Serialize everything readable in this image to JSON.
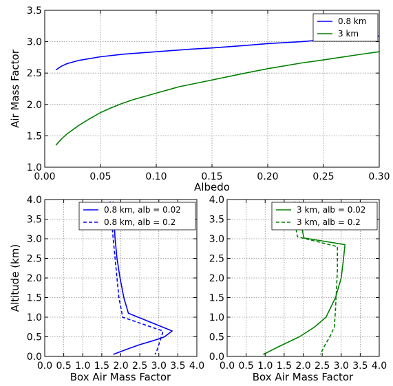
{
  "chart_data": [
    {
      "type": "line",
      "title": "",
      "xlabel": "Albedo",
      "ylabel": "Air Mass Factor",
      "xlim": [
        0.0,
        0.3
      ],
      "ylim": [
        1.0,
        3.5
      ],
      "xticks": [
        "0.00",
        "0.05",
        "0.10",
        "0.15",
        "0.20",
        "0.25",
        "0.30"
      ],
      "yticks": [
        "1.0",
        "1.5",
        "2.0",
        "2.5",
        "3.0",
        "3.5"
      ],
      "grid": true,
      "legend_position": "top-right",
      "series": [
        {
          "name": "0.8 km",
          "color": "#0000ff",
          "dash": "solid",
          "x": [
            0.01,
            0.015,
            0.02,
            0.03,
            0.04,
            0.05,
            0.07,
            0.1,
            0.13,
            0.15,
            0.18,
            0.2,
            0.23,
            0.25,
            0.28,
            0.3
          ],
          "y": [
            2.55,
            2.61,
            2.65,
            2.7,
            2.73,
            2.76,
            2.8,
            2.84,
            2.88,
            2.9,
            2.94,
            2.97,
            3.0,
            3.03,
            3.07,
            3.09
          ]
        },
        {
          "name": "3 km",
          "color": "#008000",
          "dash": "solid",
          "x": [
            0.01,
            0.015,
            0.02,
            0.03,
            0.04,
            0.05,
            0.06,
            0.07,
            0.08,
            0.1,
            0.12,
            0.15,
            0.18,
            0.2,
            0.23,
            0.25,
            0.28,
            0.3
          ],
          "y": [
            1.35,
            1.45,
            1.53,
            1.66,
            1.77,
            1.87,
            1.95,
            2.02,
            2.08,
            2.18,
            2.28,
            2.39,
            2.5,
            2.57,
            2.66,
            2.71,
            2.79,
            2.84
          ]
        }
      ]
    },
    {
      "type": "line",
      "title": "",
      "xlabel": "Box Air Mass Factor",
      "ylabel": "Altitude (km)",
      "xlim": [
        0.0,
        4.0
      ],
      "ylim": [
        0.0,
        4.0
      ],
      "xticks": [
        "0.0",
        "0.5",
        "1.0",
        "1.5",
        "2.0",
        "2.5",
        "3.0",
        "3.5",
        "4.0"
      ],
      "yticks": [
        "0.0",
        "0.5",
        "1.0",
        "1.5",
        "2.0",
        "2.5",
        "3.0",
        "3.5",
        "4.0"
      ],
      "grid": true,
      "legend_position": "top-right",
      "series": [
        {
          "name": "0.8 km, alb = 0.02",
          "color": "#0000ff",
          "dash": "solid",
          "x": [
            1.8,
            1.82,
            1.85,
            1.9,
            1.98,
            2.08,
            2.2,
            3.35,
            3.15,
            2.85,
            2.5,
            2.15,
            1.8
          ],
          "y": [
            3.95,
            3.5,
            3.0,
            2.5,
            2.0,
            1.5,
            1.1,
            0.65,
            0.5,
            0.4,
            0.3,
            0.18,
            0.05
          ]
        },
        {
          "name": "0.8 km, alb = 0.2",
          "color": "#0000ff",
          "dash": "dashed",
          "x": [
            1.72,
            1.76,
            1.8,
            1.85,
            1.9,
            1.95,
            2.05,
            3.1,
            3.1,
            3.05,
            3.0,
            2.95,
            2.9
          ],
          "y": [
            3.95,
            3.5,
            3.0,
            2.5,
            2.0,
            1.5,
            1.0,
            0.65,
            0.6,
            0.45,
            0.3,
            0.15,
            0.05
          ]
        },
        {
          "name": "3 km, alb = 0.02",
          "color": "#008000",
          "dash": "solid",
          "x": [
            1.9,
            1.95,
            1.98,
            2.02,
            3.1,
            3.05,
            3.0,
            2.85,
            2.6,
            2.3,
            1.9,
            1.4,
            0.95
          ],
          "y": [
            3.95,
            3.5,
            3.2,
            3.02,
            2.85,
            2.4,
            2.0,
            1.5,
            1.0,
            0.75,
            0.5,
            0.27,
            0.05
          ]
        },
        {
          "name": "3 km, alb = 0.2",
          "color": "#008000",
          "dash": "dashed",
          "x": [
            1.78,
            1.8,
            1.82,
            1.85,
            2.9,
            2.9,
            2.88,
            2.85,
            2.82,
            2.7,
            2.55,
            2.45
          ],
          "y": [
            3.95,
            3.5,
            3.2,
            3.05,
            2.8,
            2.2,
            1.8,
            1.2,
            0.75,
            0.5,
            0.25,
            0.05
          ]
        }
      ]
    }
  ]
}
